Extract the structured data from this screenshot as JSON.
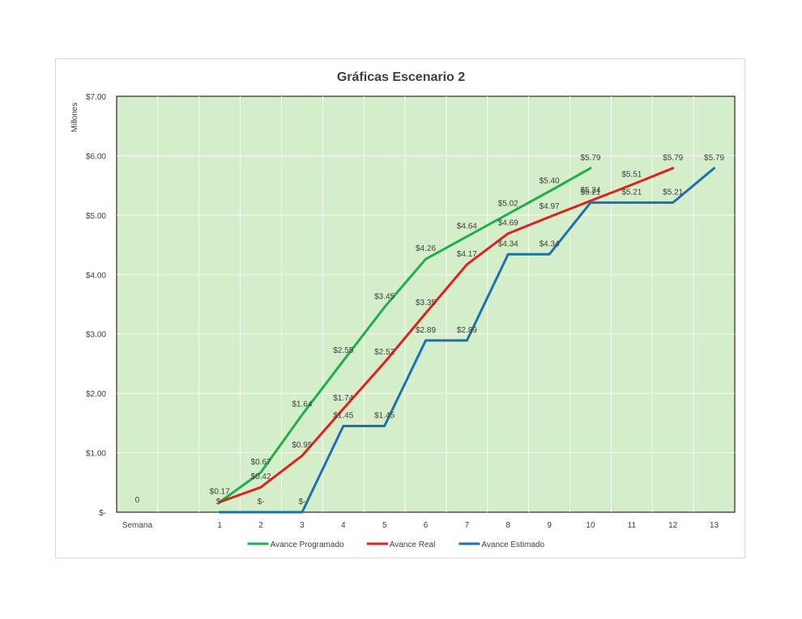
{
  "chart_data": {
    "type": "line",
    "title": "Gráficas Escenario 2",
    "ylabel": "Millones",
    "xlabel": "",
    "ylim": [
      0,
      7
    ],
    "y_ticks": [
      {
        "value": 0,
        "label": "$-"
      },
      {
        "value": 1,
        "label": "$1.00"
      },
      {
        "value": 2,
        "label": "$2.00"
      },
      {
        "value": 3,
        "label": "$3.00"
      },
      {
        "value": 4,
        "label": "$4.00"
      },
      {
        "value": 5,
        "label": "$5.00"
      },
      {
        "value": 6,
        "label": "$6.00"
      },
      {
        "value": 7,
        "label": "$7.00"
      }
    ],
    "categories": [
      "Semana",
      "",
      "1",
      "2",
      "3",
      "4",
      "5",
      "6",
      "7",
      "8",
      "9",
      "10",
      "11",
      "12",
      "13"
    ],
    "extra_labels": [
      {
        "category_index": 0,
        "text": "0"
      }
    ],
    "grid": true,
    "legend_position": "bottom",
    "series": [
      {
        "name": "Avance Programado",
        "color": "#1fb04b",
        "values": [
          null,
          null,
          0.17,
          0.67,
          1.64,
          2.55,
          3.45,
          4.26,
          4.64,
          5.02,
          5.4,
          5.79,
          null,
          null,
          null
        ],
        "labels": [
          null,
          null,
          "$0.17",
          "$0.67",
          "$1.64",
          "$2.55",
          "$3.45",
          "$4.26",
          "$4.64",
          "$5.02",
          "$5.40",
          "$5.79",
          null,
          null,
          null
        ]
      },
      {
        "name": "Avance Real",
        "color": "#e41f1f",
        "values": [
          null,
          null,
          0.17,
          0.42,
          0.95,
          1.74,
          2.52,
          3.35,
          4.17,
          4.69,
          4.97,
          5.24,
          5.51,
          5.79,
          null
        ],
        "labels": [
          null,
          null,
          "",
          "$0.42",
          "$0.95",
          "$1.74",
          "$2.52",
          "$3.35",
          "$4.17",
          "$4.69",
          "$4.97",
          "$5.24",
          "$5.51",
          "$5.79",
          null
        ]
      },
      {
        "name": "Avance Estimado",
        "color": "#1f6fb8",
        "values": [
          null,
          null,
          0,
          0,
          0,
          1.45,
          1.45,
          2.89,
          2.89,
          4.34,
          4.34,
          5.21,
          5.21,
          5.21,
          5.79
        ],
        "labels": [
          null,
          null,
          "$-",
          "$-",
          "$-",
          "$1.45",
          "$1.45",
          "$2.89",
          "$2.89",
          "$4.34",
          "$4.34",
          "$5.21",
          "$5.21",
          "$5.21",
          "$5.79"
        ]
      }
    ],
    "plot_background": "#d4eec9",
    "gridline_color": "#ffffff"
  }
}
